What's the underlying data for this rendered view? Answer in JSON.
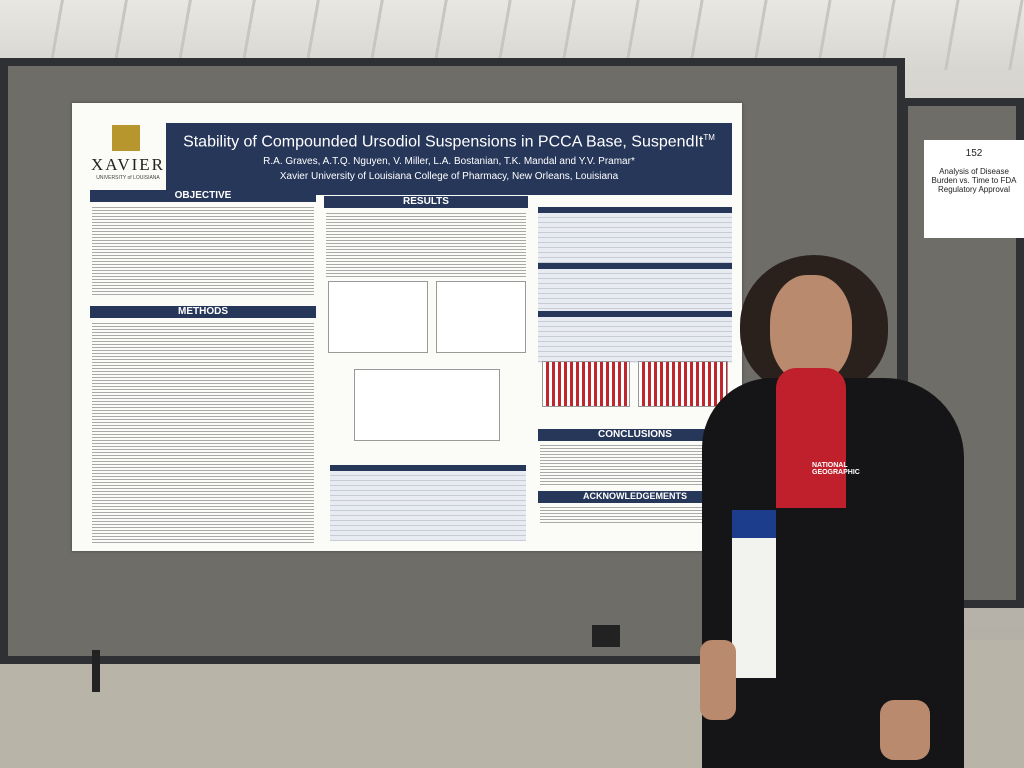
{
  "poster": {
    "logo": "XAVIER",
    "logo_subtitle": "UNIVERSITY of LOUISIANA",
    "title": "Stability of Compounded Ursodiol Suspensions in PCCA Base, SuspendIt",
    "trademark": "TM",
    "authors": "R.A. Graves, A.T.Q. Nguyen, V. Miller, L.A. Bostanian, T.K. Mandal and Y.V. Pramar*",
    "affiliation": "Xavier University of Louisiana College of Pharmacy, New Orleans, Louisiana",
    "sections": [
      "OBJECTIVE",
      "METHODS",
      "RESULTS",
      "CONCLUSIONS",
      "ACKNOWLEDGEMENTS"
    ]
  },
  "sign": {
    "number": "152",
    "text": "Analysis of Disease Burden vs. Time to FDA Regulatory Approval"
  },
  "jacket": {
    "brand": "NATIONAL GEOGRAPHIC"
  }
}
